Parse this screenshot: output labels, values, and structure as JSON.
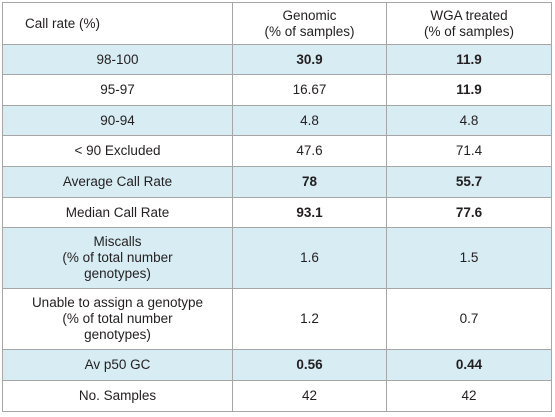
{
  "header": {
    "col1": "Call rate (%)",
    "col2_line1": "Genomic",
    "col2_line2": "(% of samples)",
    "col3_line1": "WGA treated",
    "col3_line2": "(% of samples)"
  },
  "rows": [
    {
      "label_lines": [
        "98-100"
      ],
      "genomic": "30.9",
      "wga": "11.9",
      "bold_genomic": true,
      "bold_wga": true,
      "shaded": true
    },
    {
      "label_lines": [
        "95-97"
      ],
      "genomic": "16.67",
      "wga": "11.9",
      "bold_genomic": false,
      "bold_wga": true,
      "shaded": false
    },
    {
      "label_lines": [
        "90-94"
      ],
      "genomic": "4.8",
      "wga": "4.8",
      "bold_genomic": false,
      "bold_wga": false,
      "shaded": true
    },
    {
      "label_lines": [
        "< 90 Excluded"
      ],
      "genomic": "47.6",
      "wga": "71.4",
      "bold_genomic": false,
      "bold_wga": false,
      "shaded": false
    },
    {
      "label_lines": [
        "Average Call Rate"
      ],
      "genomic": "78",
      "wga": "55.7",
      "bold_genomic": true,
      "bold_wga": true,
      "shaded": true
    },
    {
      "label_lines": [
        "Median Call Rate"
      ],
      "genomic": "93.1",
      "wga": "77.6",
      "bold_genomic": true,
      "bold_wga": true,
      "shaded": false
    },
    {
      "label_lines": [
        "Miscalls",
        "(% of total number",
        "genotypes)"
      ],
      "genomic": "1.6",
      "wga": "1.5",
      "bold_genomic": false,
      "bold_wga": false,
      "shaded": true
    },
    {
      "label_lines": [
        "Unable to assign a genotype",
        "(% of total number",
        "genotypes)"
      ],
      "genomic": "1.2",
      "wga": "0.7",
      "bold_genomic": false,
      "bold_wga": false,
      "shaded": false
    },
    {
      "label_lines": [
        "Av p50 GC"
      ],
      "genomic": "0.56",
      "wga": "0.44",
      "bold_genomic": true,
      "bold_wga": true,
      "shaded": true
    },
    {
      "label_lines": [
        "No. Samples"
      ],
      "genomic": "42",
      "wga": "42",
      "bold_genomic": false,
      "bold_wga": false,
      "shaded": false
    }
  ],
  "colors": {
    "shaded_row": "#d7ecf3",
    "border": "#a6a6a6",
    "text": "#231f20"
  }
}
